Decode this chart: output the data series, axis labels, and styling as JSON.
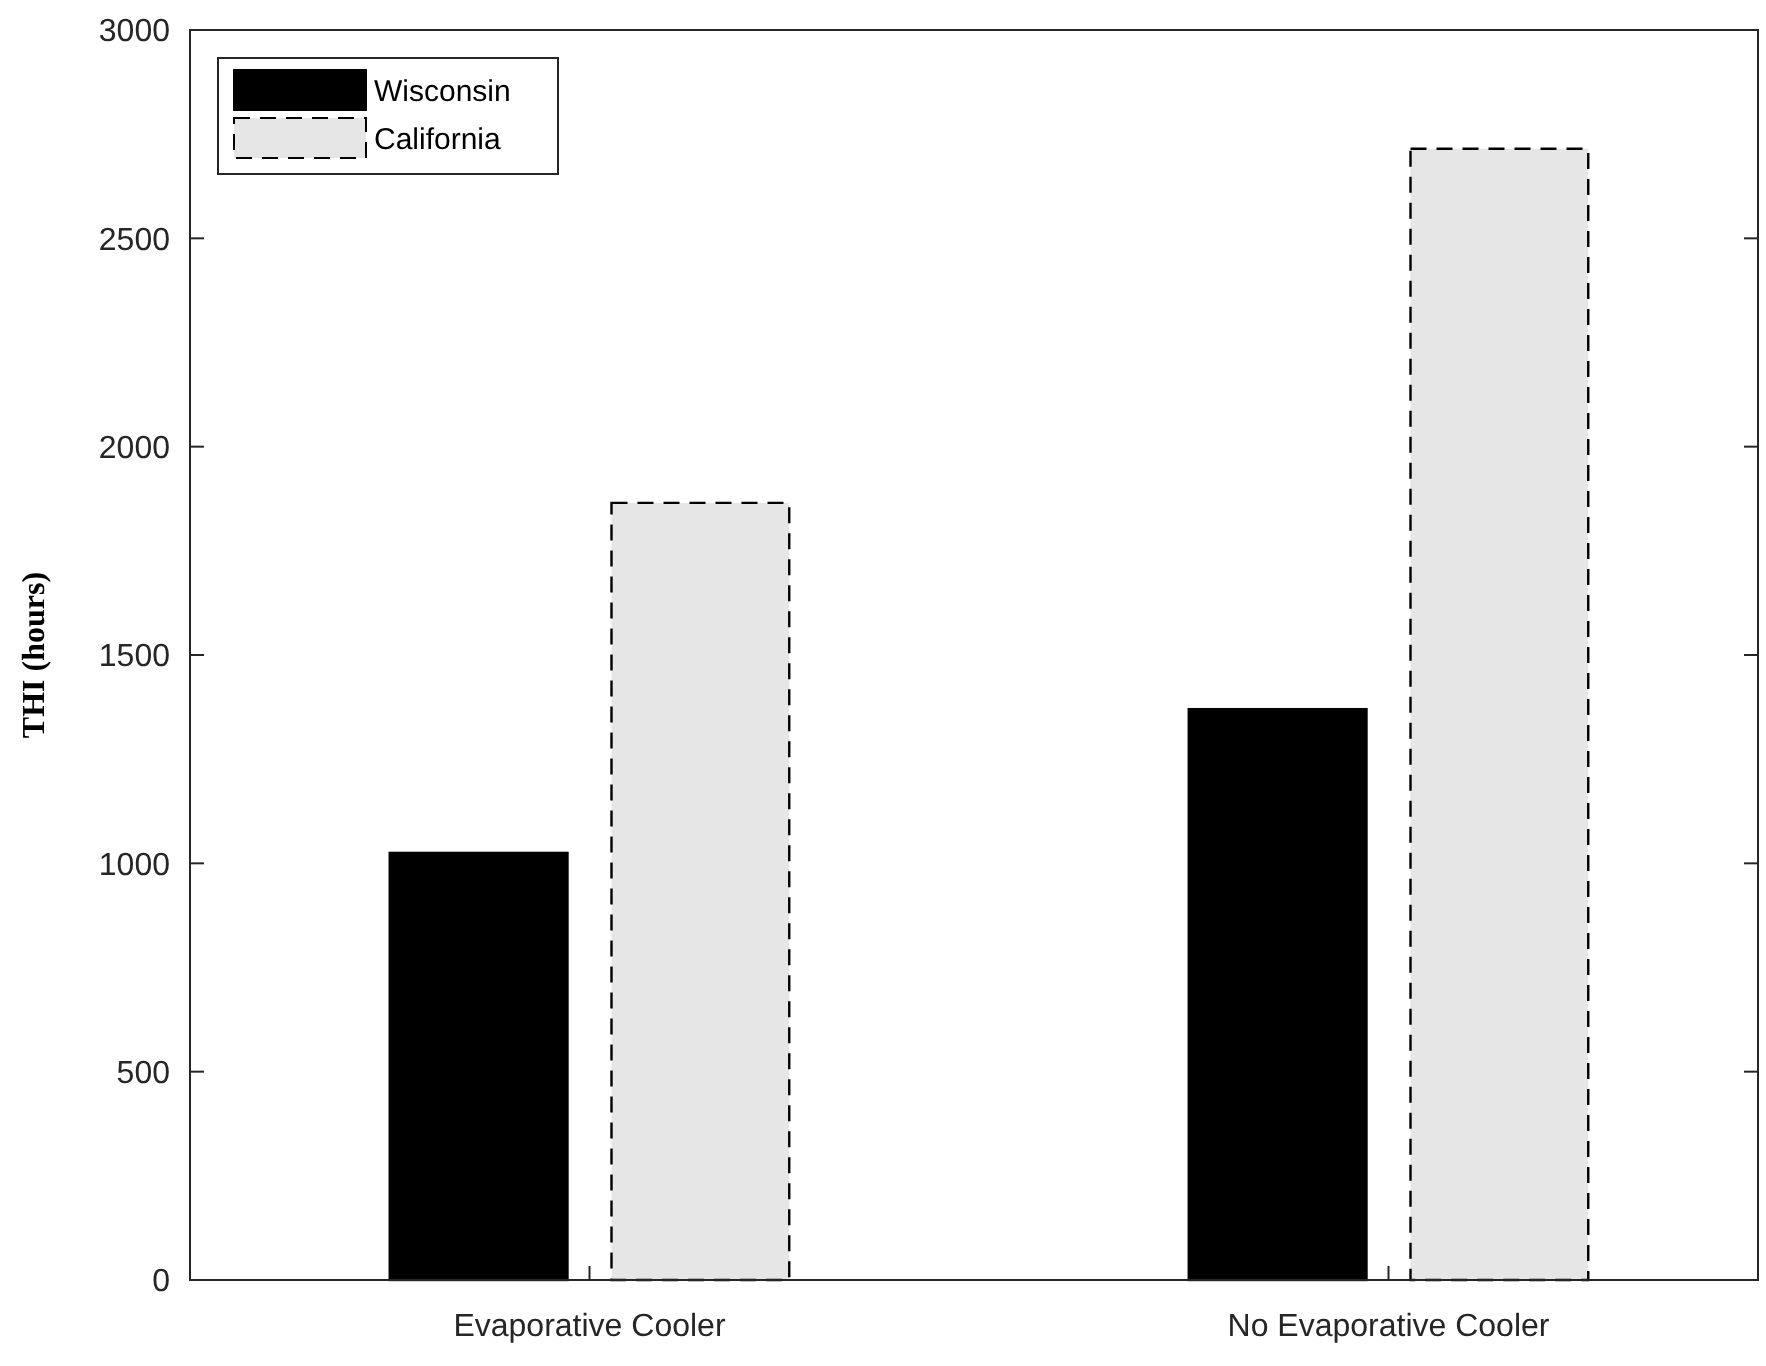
{
  "chart_data": {
    "type": "bar",
    "ylabel": "THI (hours)",
    "categories": [
      "Evaporative Cooler",
      "No Evaporative Cooler"
    ],
    "series": [
      {
        "name": "Wisconsin",
        "color": "#000000",
        "values": [
          1025,
          1370
        ]
      },
      {
        "name": "California",
        "color": "#e6e6e6",
        "values": [
          1865,
          2715
        ],
        "line_style": "dashed"
      }
    ],
    "ylim": [
      0,
      3000
    ],
    "yticks": [
      0,
      500,
      1000,
      1500,
      2000,
      2500,
      3000
    ],
    "grid": false,
    "legend": "top left"
  }
}
